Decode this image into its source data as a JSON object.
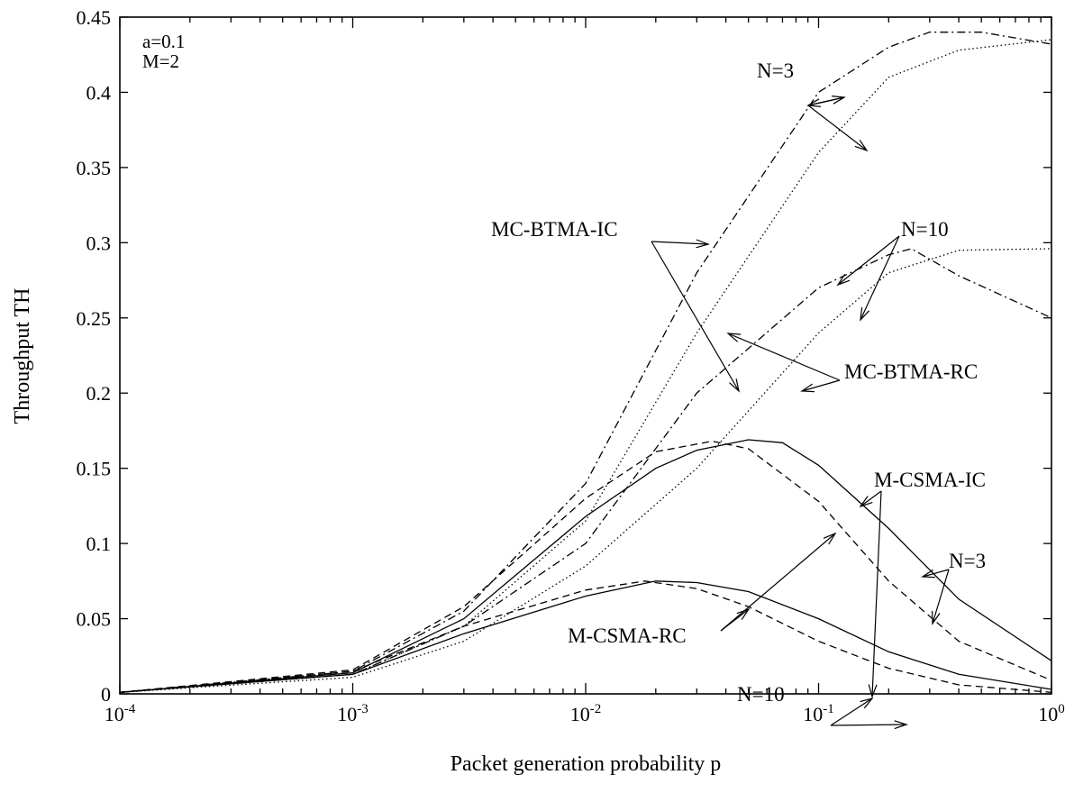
{
  "chart_data": {
    "type": "line",
    "xlabel": "Packet generation probability p",
    "ylabel": "Throughput TH",
    "xscale": "log",
    "xlim": [
      0.0001,
      1
    ],
    "ylim": [
      0,
      0.45
    ],
    "grid": false,
    "x_ticks": [
      {
        "base": "10",
        "exp": "-4"
      },
      {
        "base": "10",
        "exp": "-3"
      },
      {
        "base": "10",
        "exp": "-2"
      },
      {
        "base": "10",
        "exp": "-1"
      },
      {
        "base": "10",
        "exp": "0"
      }
    ],
    "y_ticks": [
      "0",
      "0.05",
      "0.1",
      "0.15",
      "0.2",
      "0.25",
      "0.3",
      "0.35",
      "0.4",
      "0.45"
    ],
    "notes": [
      "a=0.1",
      "M=2"
    ],
    "annotations": [
      "N=3",
      "MC-BTMA-IC",
      "N=10",
      "MC-BTMA-RC",
      "M-CSMA-IC",
      "N=3",
      "M-CSMA-RC",
      "N=10"
    ],
    "series": [
      {
        "style": "dashdot",
        "x": [
          0.0001,
          0.001,
          0.003,
          0.01,
          0.03,
          0.1,
          0.2,
          0.3,
          0.5,
          1
        ],
        "y": [
          0.001,
          0.015,
          0.055,
          0.14,
          0.28,
          0.4,
          0.43,
          0.44,
          0.44,
          0.432
        ]
      },
      {
        "style": "dotted",
        "x": [
          0.0001,
          0.001,
          0.003,
          0.01,
          0.03,
          0.1,
          0.2,
          0.4,
          1
        ],
        "y": [
          0.001,
          0.013,
          0.045,
          0.115,
          0.24,
          0.36,
          0.41,
          0.428,
          0.435
        ]
      },
      {
        "style": "dashdot",
        "x": [
          0.0001,
          0.001,
          0.003,
          0.01,
          0.03,
          0.1,
          0.2,
          0.25,
          0.4,
          1
        ],
        "y": [
          0.001,
          0.013,
          0.045,
          0.1,
          0.2,
          0.27,
          0.292,
          0.296,
          0.278,
          0.25
        ]
      },
      {
        "style": "dotted",
        "x": [
          0.0001,
          0.001,
          0.003,
          0.01,
          0.03,
          0.1,
          0.2,
          0.4,
          1
        ],
        "y": [
          0.001,
          0.011,
          0.035,
          0.085,
          0.15,
          0.24,
          0.28,
          0.295,
          0.296
        ]
      },
      {
        "style": "solid",
        "x": [
          0.0001,
          0.001,
          0.003,
          0.01,
          0.02,
          0.03,
          0.05,
          0.07,
          0.1,
          0.2,
          0.4,
          1
        ],
        "y": [
          0.001,
          0.014,
          0.05,
          0.118,
          0.15,
          0.162,
          0.169,
          0.167,
          0.152,
          0.11,
          0.063,
          0.022
        ]
      },
      {
        "style": "dashed",
        "x": [
          0.0001,
          0.001,
          0.003,
          0.01,
          0.02,
          0.035,
          0.05,
          0.1,
          0.2,
          0.4,
          1
        ],
        "y": [
          0.001,
          0.016,
          0.058,
          0.13,
          0.161,
          0.168,
          0.163,
          0.128,
          0.075,
          0.035,
          0.009
        ]
      },
      {
        "style": "solid",
        "x": [
          0.0001,
          0.001,
          0.003,
          0.01,
          0.02,
          0.03,
          0.05,
          0.1,
          0.2,
          0.4,
          1
        ],
        "y": [
          0.001,
          0.013,
          0.04,
          0.065,
          0.075,
          0.074,
          0.068,
          0.05,
          0.028,
          0.013,
          0.003
        ]
      },
      {
        "style": "dashed",
        "x": [
          0.0001,
          0.001,
          0.003,
          0.01,
          0.018,
          0.03,
          0.05,
          0.1,
          0.2,
          0.4,
          1
        ],
        "y": [
          0.001,
          0.015,
          0.045,
          0.069,
          0.075,
          0.07,
          0.058,
          0.035,
          0.017,
          0.006,
          0.001
        ]
      }
    ]
  }
}
